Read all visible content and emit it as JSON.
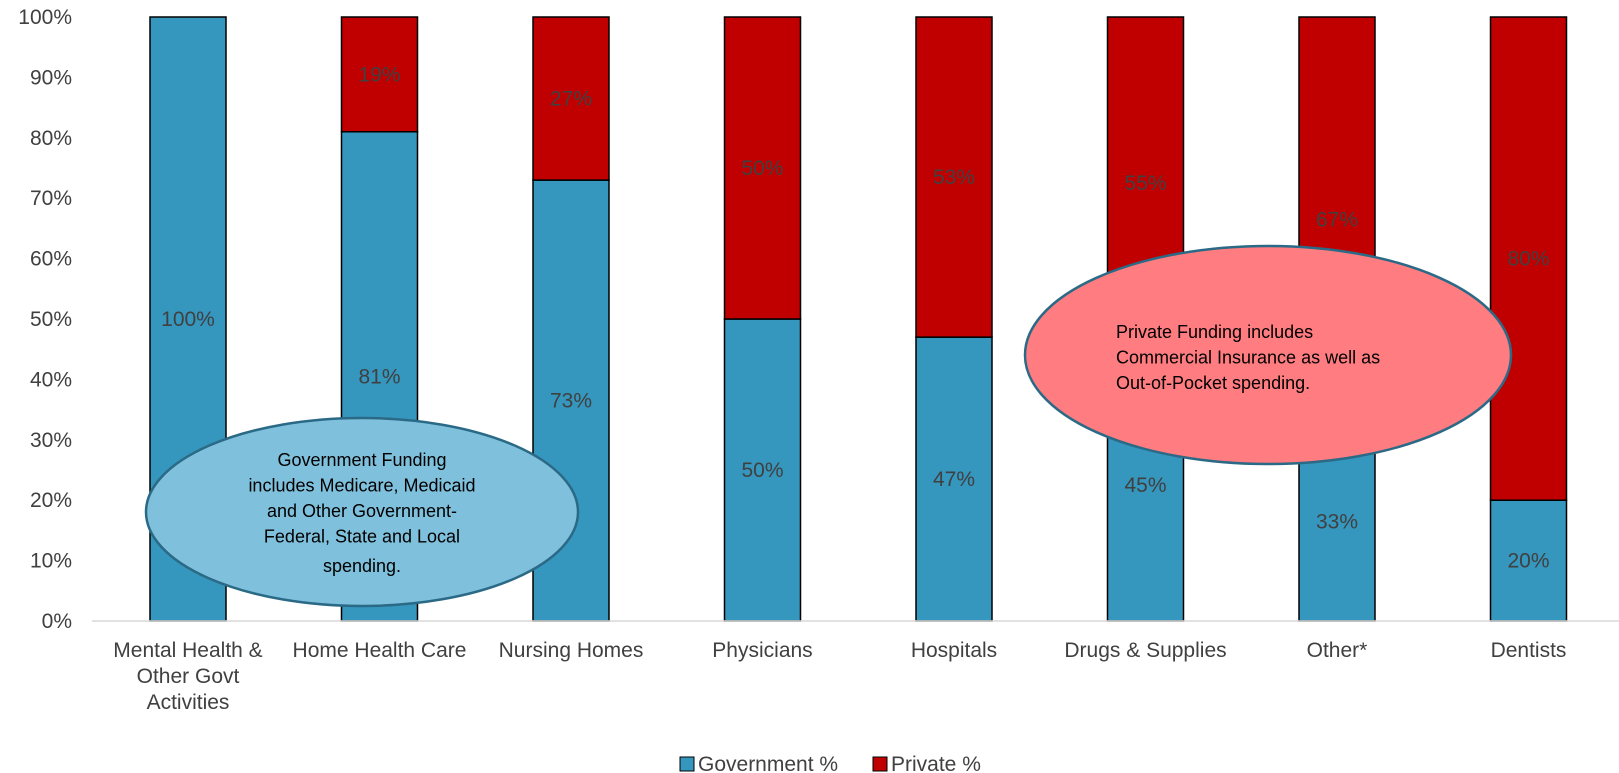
{
  "chart_data": {
    "type": "bar",
    "stacked": true,
    "categories": [
      [
        "Mental Health &",
        "Other Govt",
        "Activities"
      ],
      [
        "Home Health Care"
      ],
      [
        "Nursing Homes"
      ],
      [
        "Physicians"
      ],
      [
        "Hospitals"
      ],
      [
        "Drugs & Supplies"
      ],
      [
        "Other*"
      ],
      [
        "Dentists"
      ]
    ],
    "series": [
      {
        "name": "Government %",
        "color": "#3596be",
        "values": [
          100,
          81,
          73,
          50,
          47,
          45,
          33,
          20
        ],
        "labels": [
          "100%",
          "81%",
          "73%",
          "50%",
          "47%",
          "45%",
          "33%",
          "20%"
        ]
      },
      {
        "name": "Private %",
        "color": "#c00000",
        "values": [
          0,
          19,
          27,
          50,
          53,
          55,
          67,
          80
        ],
        "labels": [
          "",
          "19%",
          "27%",
          "50%",
          "53%",
          "55%",
          "67%",
          "80%"
        ]
      }
    ],
    "ylim": [
      0,
      100
    ],
    "yticks": [
      "0%",
      "10%",
      "20%",
      "30%",
      "40%",
      "50%",
      "60%",
      "70%",
      "80%",
      "90%",
      "100%"
    ],
    "grid": false,
    "legend_position": "bottom-center"
  },
  "callouts": {
    "government": {
      "lines": [
        "Government Funding",
        "includes Medicare, Medicaid",
        "and Other Government-",
        "Federal, State and Local",
        "spending."
      ],
      "fill": "#7fc0dc"
    },
    "private": {
      "lines": [
        "Private Funding includes",
        "Commercial Insurance as well as",
        "Out-of-Pocket spending."
      ],
      "fill": "#ff7c80"
    }
  }
}
